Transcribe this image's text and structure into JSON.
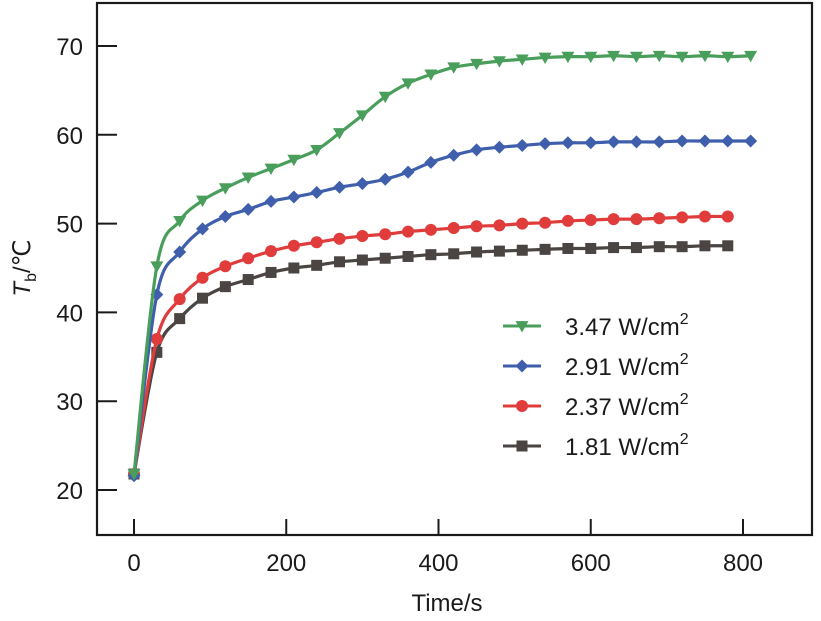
{
  "chart_data": {
    "type": "line",
    "title": "",
    "xlabel": "Time/s",
    "ylabel_main": "T",
    "ylabel_sub": "b",
    "ylabel_unit": "/℃",
    "xlim": [
      -50,
      870
    ],
    "ylim": [
      15,
      75
    ],
    "xticks": [
      0,
      200,
      400,
      600,
      800
    ],
    "yticks": [
      20,
      30,
      40,
      50,
      60,
      70
    ],
    "grid": false,
    "legend_position": "center-right",
    "series": [
      {
        "name": "3.47 W/cm",
        "name_sup": "2",
        "color": "#4a9e5c",
        "marker": "triangle-down",
        "x": [
          0,
          30,
          60,
          90,
          120,
          150,
          180,
          210,
          240,
          270,
          300,
          330,
          360,
          390,
          420,
          450,
          480,
          510,
          540,
          570,
          600,
          630,
          660,
          690,
          720,
          750,
          780,
          810
        ],
        "y": [
          21.8,
          45.2,
          50.3,
          52.6,
          54.0,
          55.2,
          56.2,
          57.2,
          58.3,
          60.2,
          62.2,
          64.3,
          65.8,
          66.8,
          67.6,
          68.0,
          68.3,
          68.5,
          68.7,
          68.8,
          68.8,
          68.9,
          68.8,
          68.9,
          68.8,
          68.9,
          68.8,
          68.9
        ]
      },
      {
        "name": "2.91 W/cm",
        "name_sup": "2",
        "color": "#3f5fac",
        "marker": "diamond",
        "x": [
          0,
          30,
          60,
          90,
          120,
          150,
          180,
          210,
          240,
          270,
          300,
          330,
          360,
          390,
          420,
          450,
          480,
          510,
          540,
          570,
          600,
          630,
          660,
          690,
          720,
          750,
          780,
          810
        ],
        "y": [
          21.6,
          42.0,
          46.8,
          49.4,
          50.8,
          51.6,
          52.5,
          53.0,
          53.5,
          54.1,
          54.5,
          55.0,
          55.8,
          56.9,
          57.7,
          58.3,
          58.6,
          58.8,
          59.0,
          59.1,
          59.1,
          59.2,
          59.2,
          59.2,
          59.3,
          59.3,
          59.3,
          59.3
        ]
      },
      {
        "name": "2.37 W/cm",
        "name_sup": "2",
        "color": "#e03c3c",
        "marker": "circle",
        "x": [
          0,
          30,
          60,
          90,
          120,
          150,
          180,
          210,
          240,
          270,
          300,
          330,
          360,
          390,
          420,
          450,
          480,
          510,
          540,
          570,
          600,
          630,
          660,
          690,
          720,
          750,
          780
        ],
        "y": [
          21.8,
          37.0,
          41.5,
          43.9,
          45.2,
          46.1,
          46.9,
          47.5,
          47.9,
          48.3,
          48.6,
          48.8,
          49.1,
          49.3,
          49.5,
          49.7,
          49.8,
          50.0,
          50.1,
          50.3,
          50.4,
          50.5,
          50.5,
          50.6,
          50.7,
          50.8,
          50.8
        ]
      },
      {
        "name": "1.81 W/cm",
        "name_sup": "2",
        "color": "#4a4442",
        "marker": "square",
        "x": [
          0,
          30,
          60,
          90,
          120,
          150,
          180,
          210,
          240,
          270,
          300,
          330,
          360,
          390,
          420,
          450,
          480,
          510,
          540,
          570,
          600,
          630,
          660,
          690,
          720,
          750,
          780
        ],
        "y": [
          21.8,
          35.5,
          39.3,
          41.6,
          42.9,
          43.7,
          44.5,
          45.0,
          45.3,
          45.7,
          45.9,
          46.1,
          46.3,
          46.5,
          46.6,
          46.8,
          46.9,
          47.0,
          47.1,
          47.2,
          47.2,
          47.3,
          47.3,
          47.4,
          47.4,
          47.5,
          47.5
        ]
      }
    ]
  }
}
